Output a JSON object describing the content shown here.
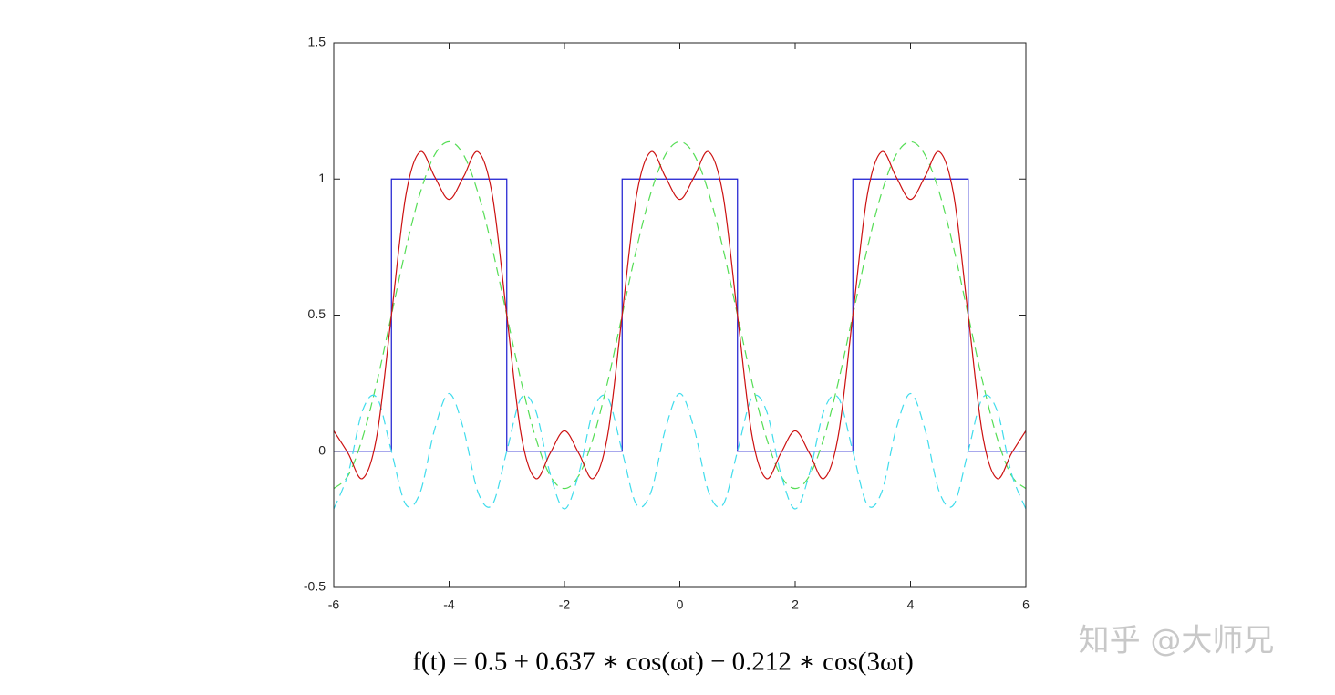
{
  "chart_data": {
    "type": "line",
    "caption": "f(t) = 0.5 + 0.637 ∗ cos(ωt) − 0.212 ∗ cos(3ωt)",
    "watermark": "知乎 @大师兄",
    "xlim": [
      -6,
      6
    ],
    "ylim": [
      -0.5,
      1.5
    ],
    "xticks": [
      -6,
      -4,
      -2,
      0,
      2,
      4,
      6
    ],
    "yticks": [
      -0.5,
      0,
      0.5,
      1,
      1.5
    ],
    "grid": false,
    "series": [
      {
        "color": "#1a1ad0",
        "dash": false,
        "smooth": false,
        "x": [
          -6,
          -5,
          -5,
          -3,
          -3,
          -1,
          -1,
          1,
          1,
          3,
          3,
          5,
          5,
          6
        ],
        "values": [
          0,
          0,
          1,
          1,
          0,
          0,
          1,
          1,
          0,
          0,
          1,
          1,
          0,
          0
        ]
      },
      {
        "color": "#55dd55",
        "dash": true,
        "smooth": true,
        "x": [
          -6,
          -5.75,
          -5.5,
          -5.25,
          -5,
          -4.75,
          -4.5,
          -4.25,
          -4,
          -3.75,
          -3.5,
          -3.25,
          -3,
          -2.75,
          -2.5,
          -2.25,
          -2,
          -1.75,
          -1.5,
          -1.25,
          -1,
          -0.75,
          -0.5,
          -0.25,
          0,
          0.25,
          0.5,
          0.75,
          1,
          1.25,
          1.5,
          1.75,
          2,
          2.25,
          2.5,
          2.75,
          3,
          3.25,
          3.5,
          3.75,
          4,
          4.25,
          4.5,
          4.75,
          5,
          5.25,
          5.5,
          5.75,
          6
        ],
        "values": [
          -0.137,
          -0.089,
          0.05,
          0.256,
          0.5,
          0.744,
          0.95,
          1.089,
          1.137,
          1.089,
          0.95,
          0.744,
          0.5,
          0.256,
          0.05,
          -0.089,
          -0.137,
          -0.089,
          0.05,
          0.256,
          0.5,
          0.744,
          0.95,
          1.089,
          1.137,
          1.089,
          0.95,
          0.744,
          0.5,
          0.256,
          0.05,
          -0.089,
          -0.137,
          -0.089,
          0.05,
          0.256,
          0.5,
          0.744,
          0.95,
          1.089,
          1.137,
          1.089,
          0.95,
          0.744,
          0.5,
          0.256,
          0.05,
          -0.089,
          -0.137
        ]
      },
      {
        "color": "#40dcec",
        "dash": true,
        "smooth": true,
        "x": [
          -6,
          -5.75,
          -5.5,
          -5.25,
          -5,
          -4.75,
          -4.5,
          -4.25,
          -4,
          -3.75,
          -3.5,
          -3.25,
          -3,
          -2.75,
          -2.5,
          -2.25,
          -2,
          -1.75,
          -1.5,
          -1.25,
          -1,
          -0.75,
          -0.5,
          -0.25,
          0,
          0.25,
          0.5,
          0.75,
          1,
          1.25,
          1.5,
          1.75,
          2,
          2.25,
          2.5,
          2.75,
          3,
          3.25,
          3.5,
          3.75,
          4,
          4.25,
          4.5,
          4.75,
          5,
          5.25,
          5.5,
          5.75,
          6
        ],
        "values": [
          -0.212,
          -0.081,
          0.15,
          0.196,
          0,
          -0.196,
          -0.15,
          0.081,
          0.212,
          0.081,
          -0.15,
          -0.196,
          0,
          0.196,
          0.15,
          -0.081,
          -0.212,
          -0.081,
          0.15,
          0.196,
          0,
          -0.196,
          -0.15,
          0.081,
          0.212,
          0.081,
          -0.15,
          -0.196,
          0,
          0.196,
          0.15,
          -0.081,
          -0.212,
          -0.081,
          0.15,
          0.196,
          0,
          -0.196,
          -0.15,
          0.081,
          0.212,
          0.081,
          -0.15,
          -0.196,
          0,
          0.196,
          0.15,
          -0.081,
          -0.212
        ]
      },
      {
        "color": "#cc1111",
        "dash": false,
        "smooth": true,
        "x": [
          -6,
          -5.75,
          -5.5,
          -5.25,
          -5,
          -4.75,
          -4.5,
          -4.25,
          -4,
          -3.75,
          -3.5,
          -3.25,
          -3,
          -2.75,
          -2.5,
          -2.25,
          -2,
          -1.75,
          -1.5,
          -1.25,
          -1,
          -0.75,
          -0.5,
          -0.25,
          0,
          0.25,
          0.5,
          0.75,
          1,
          1.25,
          1.5,
          1.75,
          2,
          2.25,
          2.5,
          2.75,
          3,
          3.25,
          3.5,
          3.75,
          4,
          4.25,
          4.5,
          4.75,
          5,
          5.25,
          5.5,
          5.75,
          6
        ],
        "values": [
          0.075,
          -0.008,
          -0.1,
          0.06,
          0.5,
          0.94,
          1.1,
          1.008,
          0.925,
          1.008,
          1.1,
          0.94,
          0.5,
          0.06,
          -0.1,
          -0.008,
          0.075,
          -0.008,
          -0.1,
          0.06,
          0.5,
          0.94,
          1.1,
          1.008,
          0.925,
          1.008,
          1.1,
          0.94,
          0.5,
          0.06,
          -0.1,
          -0.008,
          0.075,
          -0.008,
          -0.1,
          0.06,
          0.5,
          0.94,
          1.1,
          1.008,
          0.925,
          1.008,
          1.1,
          0.94,
          0.5,
          0.06,
          -0.1,
          -0.008,
          0.075
        ]
      }
    ]
  }
}
